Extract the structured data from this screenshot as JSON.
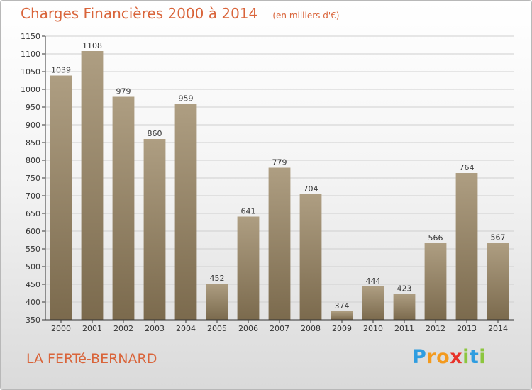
{
  "title": "Charges Financières 2000 à 2014",
  "unit_note": "(en milliers d'€)",
  "commune": "LA FERTé-BERNARD",
  "logo": {
    "letters": [
      "P",
      "r",
      "o",
      "x",
      "i",
      "t",
      "i"
    ],
    "colors": [
      "#2f9de0",
      "#f39a1e",
      "#f39a1e",
      "#e8332a",
      "#8cc63e",
      "#2f9de0",
      "#8cc63e"
    ]
  },
  "colors": {
    "bar_top": "#ae9e82",
    "bar_bottom": "#7b6a4d",
    "accent": "#d9643a",
    "axis": "#333333"
  },
  "chart_data": {
    "type": "bar",
    "categories": [
      "2000",
      "2001",
      "2002",
      "2003",
      "2004",
      "2005",
      "2006",
      "2007",
      "2008",
      "2009",
      "2010",
      "2011",
      "2012",
      "2013",
      "2014"
    ],
    "values": [
      1039,
      1108,
      979,
      860,
      959,
      452,
      641,
      779,
      704,
      374,
      444,
      423,
      566,
      764,
      567
    ],
    "ylim": [
      350,
      1150
    ],
    "yticks": [
      350,
      400,
      450,
      500,
      550,
      600,
      650,
      700,
      750,
      800,
      850,
      900,
      950,
      1000,
      1050,
      1100,
      1150
    ],
    "grid": true,
    "xlabel": "",
    "ylabel": ""
  }
}
